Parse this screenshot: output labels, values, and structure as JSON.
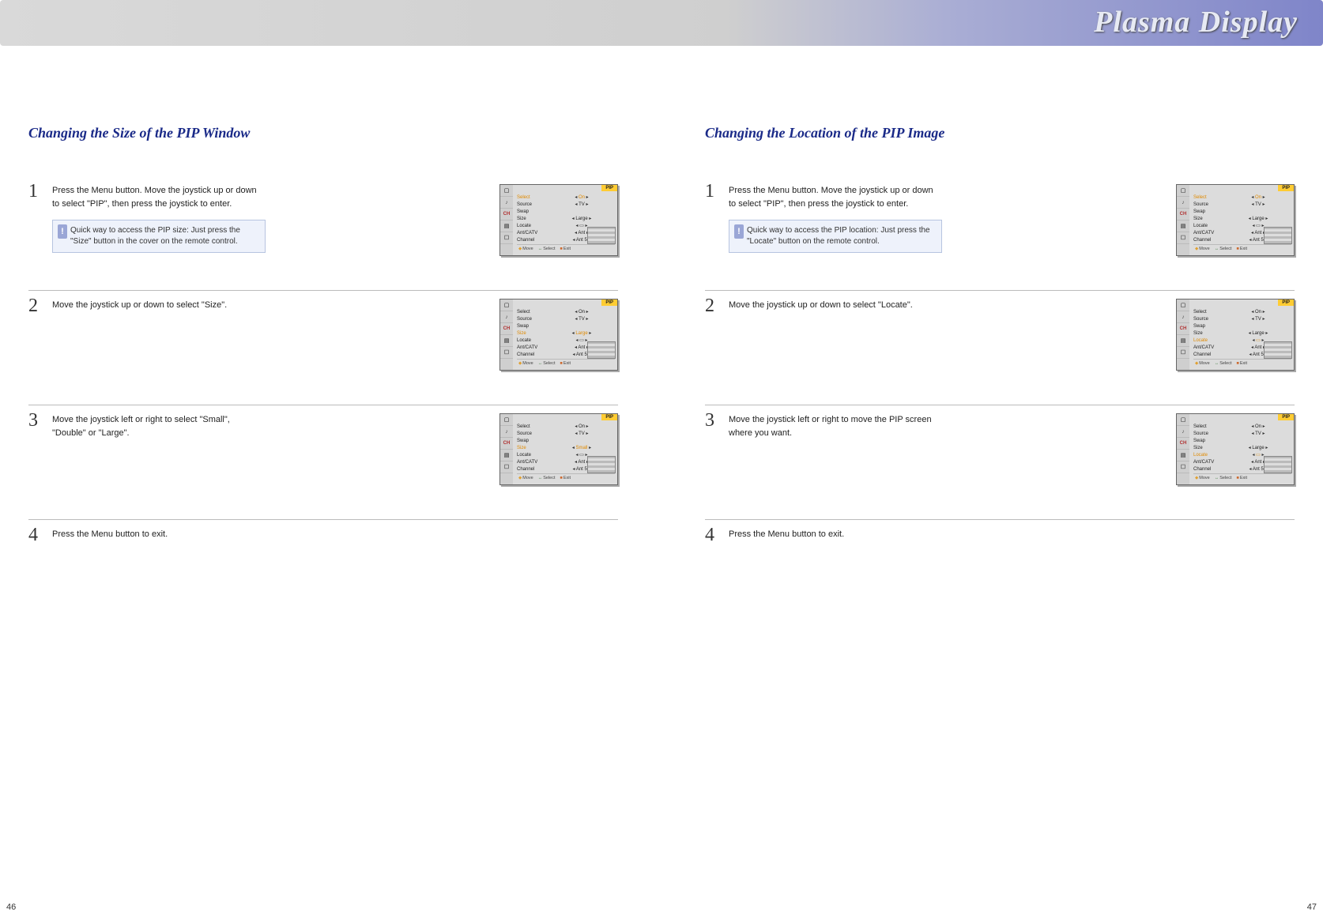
{
  "banner_title": "Plasma Display",
  "page_left": "46",
  "page_right": "47",
  "osd_header": "PIP",
  "osd_footer": {
    "move": "Move",
    "select": "Select",
    "exit": "Exit"
  },
  "icon_labels": [
    "▢",
    "♪",
    "CH",
    "▤",
    "☐"
  ],
  "menu_items": [
    "Select",
    "Source",
    "Swap",
    "Size",
    "Locate",
    "Ant/CATV",
    "Channel"
  ],
  "vals_default": [
    "On",
    "TV",
    "",
    "Large",
    "▭",
    "Ant",
    "Ant  5"
  ],
  "vals_small": [
    "On",
    "TV",
    "",
    "Small",
    "▭",
    "Ant",
    "Ant  5"
  ],
  "columns": [
    {
      "title": "Changing the Size of the PIP Window",
      "steps": [
        {
          "n": "1",
          "text": "Press the Menu button. Move the joystick up or down to select \"PIP\", then press the joystick to enter.",
          "tip": "Quick way to access the PIP size: Just press the \"Size\" button in the cover on the remote control.",
          "hl": 0,
          "vals": "vals_default"
        },
        {
          "n": "2",
          "text": "Move the joystick up or down to select \"Size\".",
          "hl": 3,
          "vals": "vals_default"
        },
        {
          "n": "3",
          "text": "Move the joystick left or right to select \"Small\", \"Double\" or \"Large\".",
          "hl": 3,
          "vals": "vals_small"
        },
        {
          "n": "4",
          "text": "Press the Menu button to exit.",
          "nofig": true
        }
      ]
    },
    {
      "title": "Changing the Location of the PIP Image",
      "steps": [
        {
          "n": "1",
          "text": "Press the Menu button. Move the joystick up or down to select \"PIP\", then press the joystick to enter.",
          "tip": "Quick way to access the PIP location: Just press the \"Locate\" button on the remote control.",
          "hl": 0,
          "vals": "vals_default"
        },
        {
          "n": "2",
          "text": "Move the joystick up or down to select \"Locate\".",
          "hl": 4,
          "vals": "vals_default"
        },
        {
          "n": "3",
          "text": "Move the joystick left or right to move the PIP screen where you want.",
          "hl": 4,
          "vals": "vals_default"
        },
        {
          "n": "4",
          "text": "Press the Menu button to exit.",
          "nofig": true
        }
      ]
    }
  ]
}
